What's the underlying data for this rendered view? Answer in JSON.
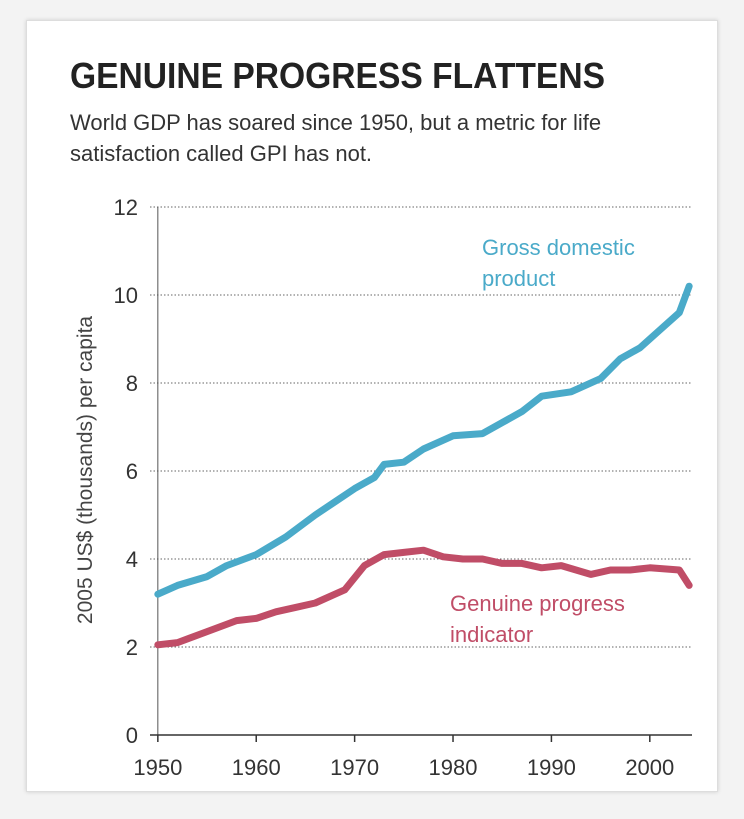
{
  "chart_data": {
    "type": "line",
    "title": "GENUINE PROGRESS FLATTENS",
    "subtitle": "World GDP has soared since 1950, but a metric for life satisfaction called GPI has not.",
    "y_label": "2005 US$ (thousands) per capita",
    "xlim": [
      1949,
      2005
    ],
    "xticks": [
      1950,
      1960,
      1970,
      1980,
      1990,
      2000
    ],
    "ylim": [
      0,
      12
    ],
    "yticks": [
      0,
      2,
      4,
      6,
      8,
      10,
      12
    ],
    "grid": true,
    "series": [
      {
        "name": "Gross domestic product",
        "color": "#4aaac9",
        "x": [
          1950,
          1952,
          1955,
          1957,
          1960,
          1963,
          1966,
          1968,
          1970,
          1972,
          1973,
          1975,
          1977,
          1980,
          1983,
          1985,
          1987,
          1989,
          1992,
          1995,
          1997,
          1999,
          2001,
          2003,
          2004
        ],
        "values": [
          3.2,
          3.4,
          3.6,
          3.85,
          4.1,
          4.5,
          5.0,
          5.3,
          5.6,
          5.85,
          6.15,
          6.2,
          6.5,
          6.8,
          6.85,
          7.1,
          7.35,
          7.7,
          7.8,
          8.1,
          8.55,
          8.8,
          9.2,
          9.6,
          10.2
        ]
      },
      {
        "name": "Genuine progress indicator",
        "color": "#c04d67",
        "x": [
          1950,
          1952,
          1955,
          1958,
          1960,
          1962,
          1964,
          1966,
          1968,
          1969,
          1971,
          1973,
          1975,
          1977,
          1979,
          1981,
          1983,
          1985,
          1987,
          1989,
          1991,
          1994,
          1996,
          1998,
          2000,
          2003,
          2004
        ],
        "values": [
          2.05,
          2.1,
          2.35,
          2.6,
          2.65,
          2.8,
          2.9,
          3.0,
          3.2,
          3.3,
          3.85,
          4.1,
          4.15,
          4.2,
          4.05,
          4.0,
          4.0,
          3.9,
          3.9,
          3.8,
          3.85,
          3.65,
          3.75,
          3.75,
          3.8,
          3.75,
          3.4
        ]
      }
    ]
  }
}
